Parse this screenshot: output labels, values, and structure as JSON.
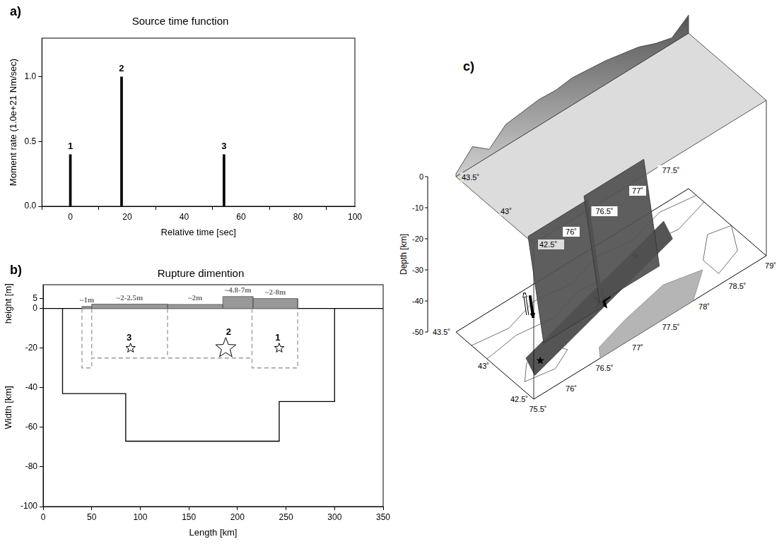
{
  "chart_data": [
    {
      "letter": "a)",
      "type": "bar",
      "title": "Source time function",
      "x_label": "Relative time [sec]",
      "y_label": "Moment rate (1.0e+21 Nm/sec)",
      "x": [
        0,
        18,
        54
      ],
      "values": [
        0.4,
        1.0,
        0.4
      ],
      "point_labels": [
        "1",
        "2",
        "3"
      ],
      "color": "#000000",
      "xlim": [
        -10,
        100
      ],
      "xticks": [
        0,
        20,
        40,
        60,
        80,
        100
      ],
      "ylim": [
        0,
        1.3
      ],
      "yticks": [
        {
          "value": 0,
          "label": "0.0"
        },
        0.5,
        {
          "value": 1,
          "label": "1.0"
        }
      ],
      "grid": false
    },
    {
      "letter": "b)",
      "type": "rupture",
      "title": "Rupture dimention",
      "x_label": "Length [km]",
      "height_label": "height [m]",
      "width_label": "Width [km]",
      "color": "#999999",
      "slip": [
        {
          "start": 40,
          "end": 50,
          "height": 1,
          "label": "~1m"
        },
        {
          "start": 50,
          "end": 128,
          "height": 2.2,
          "label": "~2-2.5m"
        },
        {
          "start": 128,
          "end": 185,
          "height": 2,
          "label": "~2m"
        },
        {
          "start": 185,
          "end": 216,
          "height": 6,
          "label": "~4.8-7m"
        },
        {
          "start": 216,
          "end": 262,
          "height": 5,
          "label": "~2-8m"
        }
      ],
      "rupture_area": {
        "x": [
          20,
          20,
          85,
          85,
          243,
          243,
          300,
          300
        ],
        "y": [
          0,
          -43,
          -43,
          -67,
          -67,
          -47,
          -47,
          0
        ],
        "line_style": "solid",
        "color": "#000000"
      },
      "slip_area": {
        "x": [
          40,
          40,
          50,
          50,
          215,
          215,
          262,
          262
        ],
        "y": [
          0,
          -30,
          -30,
          -25,
          -25,
          -30,
          -30,
          0
        ],
        "line_style": "dashed",
        "color": "#999999"
      },
      "slip_dividers": [
        {
          "x": [
            50,
            50
          ],
          "y": [
            0,
            -25
          ],
          "line_style": "dashed",
          "color": "#999999"
        },
        {
          "x": [
            128,
            128
          ],
          "y": [
            0,
            -25
          ],
          "line_style": "dashed",
          "color": "#999999"
        },
        {
          "x": [
            215,
            215
          ],
          "y": [
            0,
            -25
          ],
          "line_style": "dashed",
          "color": "#999999"
        }
      ],
      "events": [
        {
          "x": 243,
          "y": -20,
          "label": "1",
          "marker": "star"
        },
        {
          "x": 188,
          "y": -20,
          "label": "2",
          "marker": "large_star"
        },
        {
          "x": 90,
          "y": -20,
          "label": "3",
          "marker": "star"
        }
      ],
      "xlim": [
        0,
        350
      ],
      "xticks": [
        0,
        50,
        100,
        150,
        200,
        250,
        300,
        350
      ],
      "ylim": [
        -100,
        12
      ],
      "yticks": [
        -100,
        -80,
        -60,
        -40,
        -20,
        0,
        5
      ],
      "grid": false
    }
  ],
  "map_panel": {
    "letter": "c)",
    "depth_label": "Depth [km]",
    "depth_lim": [
      -50,
      0
    ],
    "depth_ticks": [
      0,
      -10,
      -20,
      -30,
      -40,
      -50
    ],
    "lon_lim": [
      75.5,
      79
    ],
    "lat_lim": [
      42.5,
      43.5
    ],
    "lon_ticks": [
      {
        "value": 75.5,
        "label": "75.5˚"
      },
      {
        "value": 76,
        "label": "76˚"
      },
      {
        "value": 76.5,
        "label": "76.5˚"
      },
      {
        "value": 77,
        "label": "77˚"
      },
      {
        "value": 77.5,
        "label": "77.5˚"
      },
      {
        "value": 78,
        "label": "78˚"
      },
      {
        "value": 78.5,
        "label": "78.5˚"
      },
      {
        "value": 79,
        "label": "79˚"
      }
    ],
    "lat_ticks": [
      {
        "value": 42.5,
        "label": "42.5˚"
      },
      {
        "value": 43,
        "label": "43˚"
      },
      {
        "value": 43.5,
        "label": "43.5˚"
      }
    ],
    "upper_lon_ticks": [
      {
        "value": 76,
        "label": "76˚"
      },
      {
        "value": 76.5,
        "label": "76.5˚"
      },
      {
        "value": 77,
        "label": "77˚"
      },
      {
        "value": 77.5,
        "label": "77.5˚"
      }
    ],
    "upper_lat_ticks": [
      {
        "value": 42.5,
        "label": "42.5˚"
      },
      {
        "value": 43,
        "label": "43˚"
      },
      {
        "value": 43.5,
        "label": "43.5˚"
      }
    ],
    "relief": {
      "lon": [
        75.5,
        75.75,
        76,
        76.25,
        76.5,
        76.75,
        77,
        77.25,
        77.5,
        77.75,
        78,
        78.25,
        78.5,
        78.75,
        79
      ],
      "height": [
        0.5,
        3.5,
        1.2,
        3.8,
        4.2,
        4.6,
        4.4,
        4.8,
        4.5,
        4.2,
        3.6,
        3.0,
        1.8,
        1.0,
        3.2
      ]
    },
    "contours": [
      {
        "lon": [
          75.5,
          76.0,
          76.5,
          77.0,
          77.5,
          78.0,
          78.5,
          79.0
        ],
        "lat": [
          43.3,
          43.25,
          43.35,
          43.3,
          43.4,
          43.35,
          43.45,
          43.4
        ]
      },
      {
        "lon": [
          75.5,
          76.0,
          76.5,
          77.0,
          77.5,
          78.0,
          78.5,
          79.0
        ],
        "lat": [
          43.1,
          43.15,
          43.1,
          43.2,
          43.15,
          43.25,
          43.2,
          43.3
        ]
      },
      {
        "lon": [
          75.6,
          76.0,
          76.3,
          76.2,
          75.8,
          75.6
        ],
        "lat": [
          42.7,
          42.65,
          42.75,
          42.9,
          42.85,
          42.7
        ]
      },
      {
        "lon": [
          78.4,
          78.8,
          79.0,
          78.7,
          78.4,
          78.4
        ],
        "lat": [
          42.6,
          42.7,
          42.95,
          43.0,
          42.8,
          42.6
        ]
      }
    ],
    "lake": {
      "lon": [
        76.5,
        77.9,
        78.3,
        77.8,
        77.1,
        76.6
      ],
      "lat": [
        42.5,
        42.5,
        42.72,
        42.8,
        42.7,
        42.6
      ]
    },
    "rupture": {
      "lon": [
        75.75,
        78.35,
        78.45,
        75.85
      ],
      "lat": [
        42.7,
        43.15,
        43.35,
        42.9
      ]
    },
    "fault_planes": [
      {
        "lon": [
          76.0,
          76.9,
          76.9,
          76.0
        ],
        "lat": [
          43.0,
          43.0,
          42.8,
          42.8
        ],
        "depth": [
          -15,
          -15,
          -45,
          -45
        ]
      },
      {
        "lon": [
          76.9,
          77.8,
          77.8,
          76.9
        ],
        "lat": [
          43.05,
          43.05,
          42.85,
          42.85
        ],
        "depth": [
          -15,
          -15,
          -45,
          -45
        ]
      }
    ],
    "epicenters": [
      {
        "lon": 77.1,
        "lat": 43.0,
        "marker": "large_star"
      },
      {
        "lon": 75.95,
        "lat": 42.8,
        "marker": "star"
      },
      {
        "lon": 77.85,
        "lat": 43.2,
        "marker": "star"
      }
    ]
  }
}
